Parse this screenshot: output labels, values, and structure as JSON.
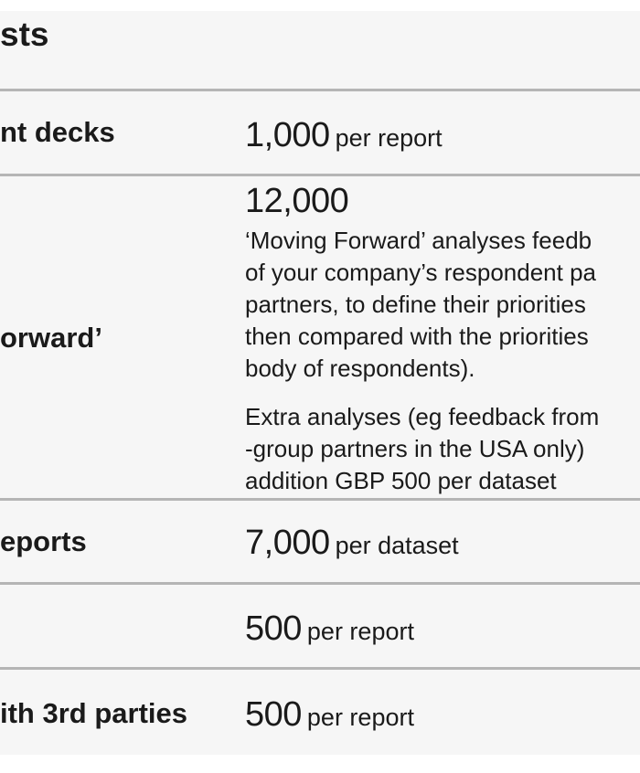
{
  "heading": "sts",
  "rows": [
    {
      "label": "nt decks",
      "amount": "1,000",
      "unit": "per report"
    },
    {
      "label": "orward’",
      "amount": "12,000",
      "description_lines": [
        "‘Moving Forward’ analyses feedb",
        "of your company’s respondent pa",
        "partners, to define their priorities",
        "then compared with the priorities",
        "body of respondents)."
      ],
      "extra_lines": [
        "Extra analyses (eg feedback from",
        "-group partners in the USA only)",
        "addition GBP 500 per dataset"
      ]
    },
    {
      "label": "eports",
      "amount": "7,000",
      "unit": "per dataset"
    },
    {
      "label": "",
      "amount": "500",
      "unit": "per report"
    },
    {
      "label": "ith 3rd parties",
      "amount": "500",
      "unit": "per report"
    }
  ]
}
